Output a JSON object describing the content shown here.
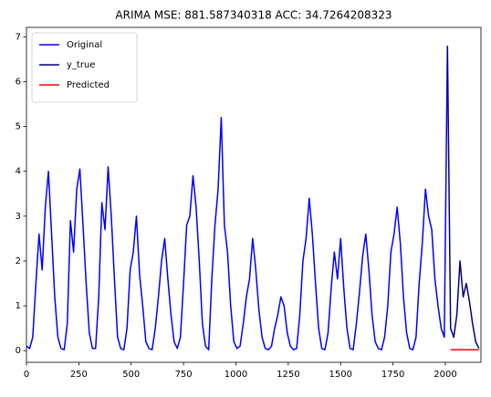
{
  "chart_data": {
    "type": "line",
    "title": "ARIMA MSE: 881.587340318 ACC: 34.7264208323",
    "xlim": [
      0,
      2170
    ],
    "xticks": [
      0,
      250,
      500,
      750,
      1000,
      1250,
      1500,
      1750,
      2000
    ],
    "ylim": [
      -0.26,
      7.21
    ],
    "yticks": [
      0,
      1,
      2,
      3,
      4,
      5,
      6,
      7
    ],
    "grid": false,
    "legend": "upper-left",
    "series": [
      {
        "name": "Original",
        "color": "#0000ff",
        "x": [
          0,
          15,
          30,
          45,
          60,
          75,
          90,
          105,
          120,
          135,
          150,
          165,
          180,
          195,
          210,
          225,
          240,
          255,
          270,
          285,
          300,
          315,
          330,
          345,
          360,
          375,
          390,
          405,
          420,
          435,
          450,
          465,
          480,
          495,
          510,
          525,
          540,
          555,
          570,
          585,
          600,
          615,
          630,
          645,
          660,
          675,
          690,
          705,
          720,
          735,
          750,
          765,
          780,
          795,
          810,
          825,
          840,
          855,
          870,
          885,
          900,
          915,
          930,
          945,
          960,
          975,
          990,
          1005,
          1020,
          1035,
          1050,
          1065,
          1080,
          1095,
          1110,
          1125,
          1140,
          1155,
          1170,
          1185,
          1200,
          1215,
          1230,
          1245,
          1260,
          1275,
          1290,
          1305,
          1320,
          1335,
          1350,
          1365,
          1380,
          1395,
          1410,
          1425,
          1440,
          1455,
          1470,
          1485,
          1500,
          1515,
          1530,
          1545,
          1560,
          1575,
          1590,
          1605,
          1620,
          1635,
          1650,
          1665,
          1680,
          1695,
          1710,
          1725,
          1740,
          1755,
          1770,
          1785,
          1800,
          1815,
          1830,
          1845,
          1860,
          1875,
          1890,
          1905,
          1920,
          1935,
          1950,
          1965,
          1980,
          1995,
          2010
        ],
        "values": [
          0.1,
          0.05,
          0.3,
          1.5,
          2.6,
          1.8,
          3.2,
          4.0,
          2.6,
          1.2,
          0.3,
          0.05,
          0.02,
          0.6,
          2.9,
          2.2,
          3.6,
          4.05,
          2.8,
          1.5,
          0.4,
          0.05,
          0.05,
          1.2,
          3.3,
          2.7,
          4.1,
          3.0,
          1.6,
          0.3,
          0.05,
          0.02,
          0.5,
          1.8,
          2.2,
          3.0,
          1.7,
          1.0,
          0.2,
          0.05,
          0.02,
          0.5,
          1.2,
          2.0,
          2.5,
          1.6,
          0.8,
          0.2,
          0.05,
          0.3,
          1.5,
          2.8,
          3.0,
          3.9,
          3.2,
          2.0,
          0.6,
          0.1,
          0.02,
          1.6,
          2.8,
          3.6,
          5.2,
          2.8,
          2.2,
          1.0,
          0.2,
          0.05,
          0.1,
          0.6,
          1.2,
          1.6,
          2.5,
          1.8,
          0.9,
          0.3,
          0.05,
          0.02,
          0.1,
          0.5,
          0.8,
          1.2,
          1.0,
          0.4,
          0.1,
          0.02,
          0.05,
          0.8,
          2.0,
          2.5,
          3.4,
          2.6,
          1.5,
          0.5,
          0.05,
          0.02,
          0.4,
          1.4,
          2.2,
          1.6,
          2.5,
          1.4,
          0.5,
          0.05,
          0.02,
          0.6,
          1.3,
          2.1,
          2.6,
          1.8,
          0.8,
          0.2,
          0.05,
          0.02,
          0.3,
          1.0,
          2.2,
          2.6,
          3.2,
          2.4,
          1.2,
          0.4,
          0.05,
          0.02,
          0.3,
          1.5,
          2.4,
          3.6,
          3.0,
          2.7,
          1.6,
          1.0,
          0.5,
          0.3,
          6.8
        ]
      },
      {
        "name": "y_true",
        "color": "#000080",
        "x": [
          2010,
          2025,
          2040,
          2055,
          2070,
          2085,
          2100,
          2115,
          2130,
          2145,
          2160
        ],
        "values": [
          6.8,
          0.5,
          0.3,
          0.8,
          2.0,
          1.2,
          1.5,
          1.1,
          0.6,
          0.2,
          0.05
        ]
      },
      {
        "name": "Predicted",
        "color": "#ff0000",
        "x": [
          2025,
          2160
        ],
        "values": [
          0.02,
          0.02
        ]
      }
    ]
  }
}
